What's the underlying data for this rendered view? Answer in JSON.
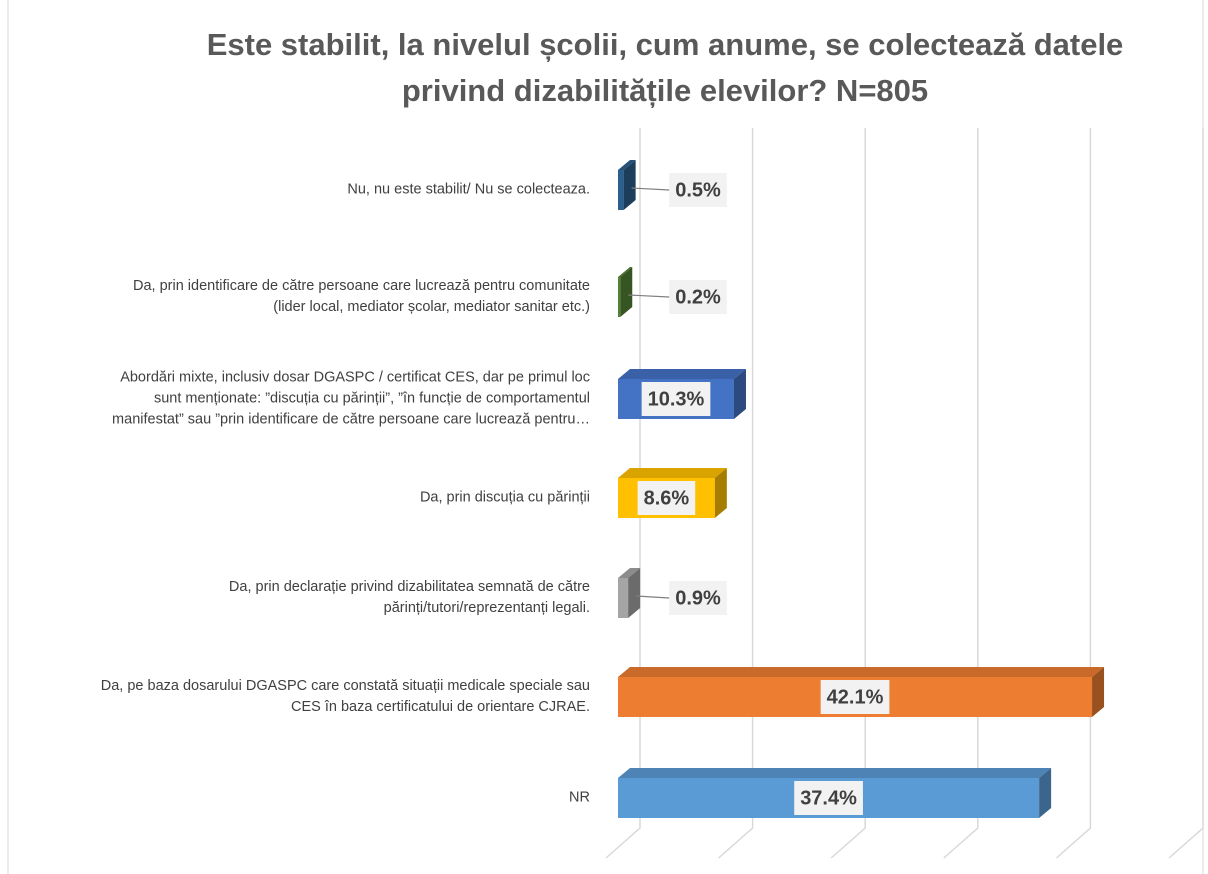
{
  "chart_data": {
    "type": "bar3d-horizontal",
    "title": "Este stabilit, la nivelul școlii, cum anume, se colectează datele\nprivind dizabilitățile elevilor? N=805",
    "categories": [
      "Nu, nu este stabilit/ Nu se colecteaza.",
      "Da, prin identificare de către persoane care lucrează pentru comunitate\n(lider local, mediator școlar, mediator sanitar etc.)",
      "Abordări mixte, inclusiv dosar DGASPC / certificat CES, dar pe primul loc\nsunt menționate: ”discuția cu părinții”, ”în funcție de comportamentul\nmanifestat” sau ”prin identificare de către persoane care lucrează pentru…",
      "Da, prin discuția cu părinții",
      "Da, prin declarație privind dizabilitatea semnată de către\npărinți/tutori/reprezentanți legali.",
      "Da, pe baza dosarului DGASPC care constată situații medicale speciale sau\nCES în baza certificatului de orientare CJRAE.",
      "NR"
    ],
    "values": [
      0.5,
      0.2,
      10.3,
      8.6,
      0.9,
      42.1,
      37.4
    ],
    "value_labels": [
      "0.5%",
      "0.2%",
      "10.3%",
      "8.6%",
      "0.9%",
      "42.1%",
      "37.4%"
    ],
    "colors": [
      "#2b5f8e",
      "#548235",
      "#4472c4",
      "#ffc000",
      "#a5a5a5",
      "#ed7d31",
      "#5b9bd5"
    ],
    "xlim": [
      0,
      50
    ],
    "xticks": [
      0,
      10,
      20,
      30,
      40,
      50
    ],
    "grid": true
  }
}
